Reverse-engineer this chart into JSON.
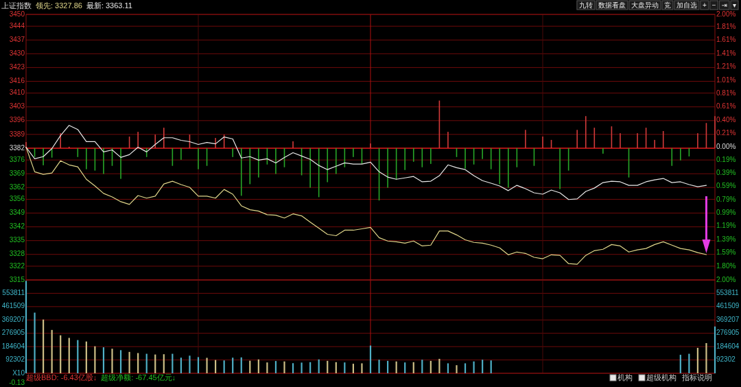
{
  "chart_data": [
    {
      "type": "line",
      "title": "上证指数",
      "legend": "top left",
      "grid": true,
      "categories": [
        null,
        null,
        null,
        null,
        null,
        null,
        null,
        null,
        null,
        null,
        null,
        null,
        null,
        null,
        null,
        null,
        null,
        null,
        null,
        null,
        null,
        null,
        null,
        null,
        null,
        null,
        null,
        null,
        null,
        null,
        null,
        null,
        null,
        null,
        null,
        null,
        null,
        null,
        null,
        null,
        null,
        null,
        null,
        null,
        null,
        null,
        null,
        null,
        null,
        null,
        null,
        null,
        null,
        null,
        null,
        null,
        null,
        null,
        null,
        null,
        null,
        null,
        null,
        null,
        null,
        null,
        null,
        null,
        null,
        null,
        null,
        null,
        null,
        null,
        null,
        null,
        null,
        null,
        null,
        null,
        null
      ],
      "ylim": [
        3315,
        3450
      ],
      "yticks": [
        3450,
        3444,
        3437,
        3430,
        3423,
        3416,
        3410,
        3403,
        3396,
        3389,
        3382,
        3376,
        3369,
        3362,
        3356,
        3349,
        3342,
        3335,
        3328,
        3322,
        3315
      ],
      "y2lim": [
        -2,
        2
      ],
      "y2ticks": [
        {
          "value": 2,
          "label": "2.00%"
        },
        {
          "value": 1.81,
          "label": "1.81%"
        },
        {
          "value": 1.61,
          "label": "1.61%"
        },
        {
          "value": 1.41,
          "label": "1.41%"
        },
        {
          "value": 1.21,
          "label": "1.21%"
        },
        {
          "value": 1.005,
          "label": "1.01%"
        },
        {
          "value": 0.81,
          "label": "0.81%"
        },
        {
          "value": 0.61,
          "label": "0.61%"
        },
        {
          "value": 0.4,
          "label": "0.40%"
        },
        {
          "value": 0.205,
          "label": "0.21%"
        },
        {
          "value": 0,
          "label": "0.00%"
        },
        {
          "value": -0.19,
          "label": "0.19%"
        },
        {
          "value": -0.39,
          "label": "0.39%"
        },
        {
          "value": -0.59,
          "label": "0.59%"
        },
        {
          "value": -0.79,
          "label": "0.79%"
        },
        {
          "value": -0.99,
          "label": "0.99%"
        },
        {
          "value": -1.19,
          "label": "1.19%"
        },
        {
          "value": -1.39,
          "label": "1.39%"
        },
        {
          "value": -1.59,
          "label": "1.59%"
        },
        {
          "value": -1.795,
          "label": "1.80%"
        },
        {
          "value": -2,
          "label": "2.00%"
        }
      ],
      "ref_lines": [
        {
          "axis": "y",
          "value": 3382,
          "color": "#d01818"
        }
      ],
      "series": [
        {
          "type": "bar",
          "base": [
            3382,
            3382,
            3382,
            3382,
            3382,
            3382,
            3382,
            3382,
            3382,
            3382,
            3382,
            3382,
            3382,
            3382,
            3382,
            3382,
            3382,
            3382,
            3382,
            3382,
            3382,
            3382,
            3382,
            3382,
            3382,
            3382,
            3382,
            3382,
            3382,
            3382,
            3382,
            3382,
            3382,
            3382,
            3382,
            3382,
            3382,
            3382,
            3382,
            3382,
            3382,
            3382,
            3382,
            3382,
            3382,
            3382,
            3382,
            3382,
            3382,
            3382,
            3382,
            3382,
            3382,
            3382,
            3382,
            3382,
            3382,
            3382,
            3382,
            3382,
            3382,
            3382,
            3382,
            3382,
            3382,
            3382,
            3382,
            3382,
            3382,
            3382,
            3382,
            3382,
            3382,
            3382,
            3382,
            3382,
            3382,
            3382,
            3382,
            3382,
            3382
          ],
          "values": [
            3.1,
            -4.5,
            -8.7,
            -4.8,
            7.6,
            0.7,
            -4.5,
            -10.7,
            -11.4,
            -13.1,
            -9.0,
            -15.6,
            5.9,
            8.3,
            -4.5,
            6.9,
            10.4,
            -9.0,
            -5.9,
            6.9,
            -10.7,
            -9.0,
            5.2,
            6.9,
            -4.5,
            -24.2,
            -18.3,
            -14.9,
            -8.3,
            -13.1,
            -9.7,
            3.5,
            -13.8,
            -20.1,
            -24.9,
            -17.3,
            -13.1,
            -9.7,
            -4.5,
            -8.0,
            2.4,
            -26.6,
            -20.1,
            -15.9,
            -11.1,
            -6.9,
            -9.7,
            -8.0,
            24.2,
            8.3,
            -4.5,
            -10.4,
            -8.3,
            -5.5,
            -10.7,
            -18.3,
            -20.1,
            -9.7,
            9.3,
            -9.0,
            5.9,
            4.2,
            -20.8,
            -11.4,
            9.3,
            16.3,
            10.4,
            -2.8,
            11.1,
            7.6,
            -14.9,
            7.6,
            10.4,
            4.2,
            8.7,
            -9.0,
            -6.2,
            -4.2,
            7.6,
            12.8,
            16.3
          ],
          "colors": [
            "#d23a3a",
            "#27a527",
            "#27a527",
            "#27a527",
            "#d23a3a",
            "#d23a3a",
            "#27a527",
            "#27a527",
            "#27a527",
            "#27a527",
            "#27a527",
            "#27a527",
            "#d23a3a",
            "#d23a3a",
            "#27a527",
            "#d23a3a",
            "#d23a3a",
            "#27a527",
            "#27a527",
            "#d23a3a",
            "#27a527",
            "#27a527",
            "#d23a3a",
            "#d23a3a",
            "#27a527",
            "#27a527",
            "#27a527",
            "#27a527",
            "#27a527",
            "#27a527",
            "#27a527",
            "#d23a3a",
            "#27a527",
            "#27a527",
            "#27a527",
            "#27a527",
            "#27a527",
            "#27a527",
            "#27a527",
            "#27a527",
            "#d23a3a",
            "#27a527",
            "#27a527",
            "#27a527",
            "#27a527",
            "#27a527",
            "#27a527",
            "#27a527",
            "#d23a3a",
            "#d23a3a",
            "#27a527",
            "#27a527",
            "#27a527",
            "#27a527",
            "#27a527",
            "#27a527",
            "#27a527",
            "#27a527",
            "#d23a3a",
            "#27a527",
            "#d23a3a",
            "#d23a3a",
            "#27a527",
            "#27a527",
            "#d23a3a",
            "#d23a3a",
            "#d23a3a",
            "#27a527",
            "#d23a3a",
            "#d23a3a",
            "#27a527",
            "#d23a3a",
            "#d23a3a",
            "#d23a3a",
            "#d23a3a",
            "#27a527",
            "#27a527",
            "#27a527",
            "#d23a3a",
            "#d23a3a",
            "#d23a3a"
          ]
        },
        {
          "name": "领先: 3327.86",
          "color": "#e0d68a",
          "values": [
            3382.5,
            3370.0,
            3368.7,
            3369.4,
            3375.6,
            3373.5,
            3372.5,
            3366.2,
            3362.8,
            3359.0,
            3357.2,
            3354.8,
            3353.4,
            3357.9,
            3356.6,
            3357.6,
            3363.8,
            3365.2,
            3363.5,
            3362.1,
            3357.6,
            3357.6,
            3356.6,
            3361.0,
            3358.6,
            3352.7,
            3350.7,
            3350.0,
            3348.2,
            3347.9,
            3346.5,
            3348.6,
            3347.6,
            3344.4,
            3341.3,
            3338.2,
            3337.5,
            3340.3,
            3340.3,
            3341.0,
            3341.7,
            3336.5,
            3334.8,
            3334.4,
            3333.7,
            3334.8,
            3332.3,
            3332.7,
            3339.9,
            3339.9,
            3337.9,
            3335.4,
            3334.1,
            3333.7,
            3332.7,
            3331.3,
            3327.8,
            3329.2,
            3328.5,
            3326.5,
            3325.8,
            3327.8,
            3327.5,
            3323.3,
            3323.0,
            3327.5,
            3329.9,
            3330.6,
            3333.0,
            3332.3,
            3329.2,
            3330.3,
            3331.0,
            3333.0,
            3334.4,
            3332.7,
            3331.0,
            3330.3,
            3328.9,
            3327.9,
            null
          ]
        },
        {
          "name": "最新: 3363.11",
          "color": "#e8e8e8",
          "values": [
            3382.5,
            3376.6,
            3377.7,
            3381.8,
            3388.4,
            3393.6,
            3391.5,
            3385.3,
            3385.3,
            3380.1,
            3381.1,
            3377.3,
            3378.7,
            3382.5,
            3380.1,
            3383.9,
            3387.3,
            3387.3,
            3386.0,
            3385.3,
            3383.9,
            3384.9,
            3384.2,
            3387.7,
            3386.7,
            3377.0,
            3377.7,
            3375.9,
            3376.6,
            3374.5,
            3377.3,
            3379.7,
            3378.0,
            3376.3,
            3373.2,
            3371.1,
            3372.8,
            3374.5,
            3373.9,
            3373.9,
            3374.9,
            3370.0,
            3367.3,
            3366.2,
            3366.9,
            3367.6,
            3364.9,
            3365.2,
            3368.0,
            3373.5,
            3372.1,
            3371.1,
            3368.0,
            3365.5,
            3364.2,
            3362.8,
            3360.4,
            3363.1,
            3361.4,
            3359.3,
            3358.6,
            3360.7,
            3359.3,
            3355.9,
            3356.2,
            3360.0,
            3361.7,
            3364.5,
            3365.2,
            3364.9,
            3363.1,
            3363.1,
            3364.9,
            3365.9,
            3366.6,
            3364.5,
            3364.9,
            3363.5,
            3362.4,
            3363.1,
            null
          ]
        }
      ],
      "annotations": [
        "九转",
        "数据看盘",
        "大盘异动",
        "竞",
        "加自选",
        "+",
        "−",
        "⇥",
        "▾"
      ]
    },
    {
      "type": "bar",
      "grid": true,
      "categories": [
        null,
        null,
        null,
        null,
        null,
        null,
        null,
        null,
        null,
        null,
        null,
        null,
        null,
        null,
        null,
        null,
        null,
        null,
        null,
        null,
        null,
        null,
        null,
        null,
        null,
        null,
        null,
        null,
        null,
        null,
        null,
        null,
        null,
        null,
        null,
        null,
        null,
        null,
        null,
        null,
        null,
        null,
        null,
        null,
        null,
        null,
        null,
        null,
        null,
        null,
        null,
        null,
        null,
        null,
        null,
        null,
        null,
        null,
        null,
        null,
        null,
        null,
        null,
        null,
        null,
        null,
        null,
        null,
        null,
        null,
        null,
        null,
        null,
        null,
        null,
        null,
        null,
        null,
        null,
        null,
        null
      ],
      "ylim": [
        0,
        646114
      ],
      "yticks": [
        {
          "value": 0,
          "label": "X10"
        },
        92302,
        184604,
        276905,
        369207,
        461509,
        553811
      ],
      "y2lim": [
        0,
        646114
      ],
      "y2ticks": [
        92302,
        184604,
        276905,
        369207,
        461509,
        553811
      ],
      "values": [
        640000,
        420000,
        372000,
        300000,
        263000,
        245000,
        230000,
        220000,
        187000,
        180000,
        170000,
        160000,
        148000,
        140000,
        135000,
        130000,
        132000,
        135000,
        108000,
        122000,
        112000,
        107000,
        92000,
        89000,
        108000,
        110000,
        87000,
        96000,
        75000,
        85000,
        82000,
        70000,
        74000,
        77000,
        96000,
        86000,
        77000,
        75000,
        66000,
        69000,
        192000,
        94000,
        86000,
        82000,
        75000,
        77000,
        94000,
        86000,
        100000,
        69000,
        56000,
        69000,
        82000,
        94000,
        89000,
        null,
        null,
        null,
        null,
        null,
        null,
        null,
        null,
        null,
        null,
        null,
        null,
        null,
        null,
        null,
        null,
        null,
        null,
        null,
        null,
        null,
        128000,
        135000,
        176000,
        209000,
        324000
      ],
      "colors": [
        "#4fb0c6",
        "#4fb0c6",
        "#cdbf86",
        "#cdbf86",
        "#cdbf86",
        "#cdbf86",
        "#4fb0c6",
        "#cdbf86",
        "#cdbf86",
        "#4fb0c6",
        "#cdbf86",
        "#4fb0c6",
        "#cdbf86",
        "#cdbf86",
        "#4fb0c6",
        "#cdbf86",
        "#cdbf86",
        "#4fb0c6",
        "#4fb0c6",
        "#4fb0c6",
        "#4fb0c6",
        "#cdbf86",
        "#cdbf86",
        "#4fb0c6",
        "#4fb0c6",
        "#4fb0c6",
        "#cdbf86",
        "#cdbf86",
        "#cdbf86",
        "#4fb0c6",
        "#cdbf86",
        "#4fb0c6",
        "#4fb0c6",
        "#4fb0c6",
        "#4fb0c6",
        "#cdbf86",
        "#cdbf86",
        "#4fb0c6",
        "#cdbf86",
        "#cdbf86",
        "#4fb0c6",
        "#4fb0c6",
        "#4fb0c6",
        "#cdbf86",
        "#4fb0c6",
        "#cdbf86",
        "#4fb0c6",
        "#cdbf86",
        "#cdbf86",
        "#4fb0c6",
        "#cdbf86",
        "#4fb0c6",
        "#4fb0c6",
        "#4fb0c6",
        "#4fb0c6",
        null,
        null,
        null,
        null,
        null,
        null,
        null,
        null,
        null,
        null,
        null,
        null,
        null,
        null,
        null,
        null,
        null,
        null,
        null,
        null,
        null,
        "#4fb0c6",
        "#4fb0c6",
        "#cdbf86",
        "#cdbf86",
        "#4fb0c6"
      ],
      "annotations": [
        "超级BBD: -6.43亿股↓",
        "超级净额: -67.45亿元↓",
        "-0.13",
        "机构",
        "超级机构",
        "指标说明"
      ]
    }
  ]
}
